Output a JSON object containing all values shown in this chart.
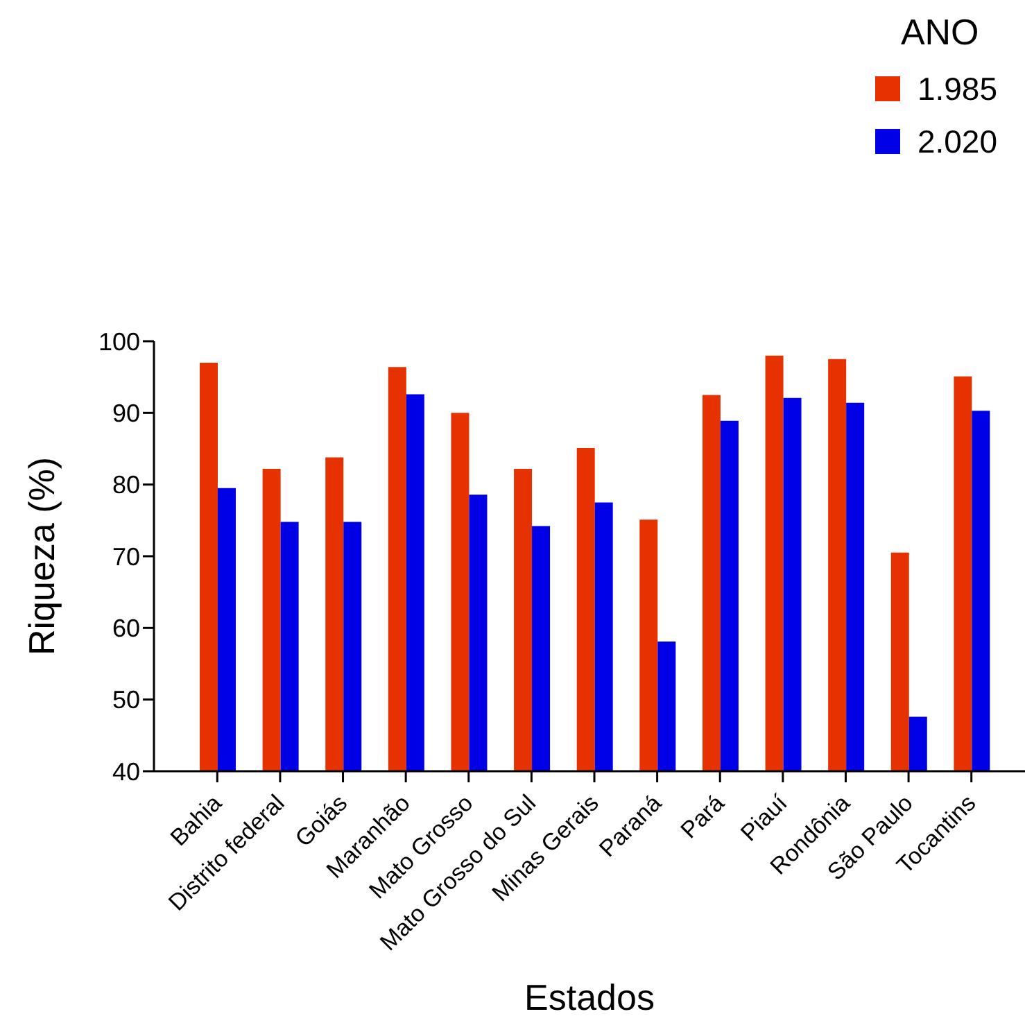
{
  "chart_data": {
    "type": "bar",
    "xlabel": "Estados",
    "ylabel": "Riqueza (%)",
    "legend_title": "ANO",
    "categories": [
      "Bahia",
      "Distrito federal",
      "Goiás",
      "Maranhão",
      "Mato Grosso",
      "Mato Grosso do Sul",
      "Minas Gerais",
      "Paraná",
      "Pará",
      "Piauí",
      "Rondônia",
      "São Paulo",
      "Tocantins"
    ],
    "series": [
      {
        "name": "1.985",
        "color": "#e63200",
        "values": [
          97.0,
          82.2,
          83.8,
          96.4,
          90.0,
          82.2,
          85.1,
          75.1,
          92.5,
          98.0,
          97.5,
          70.5,
          95.1
        ]
      },
      {
        "name": "2.020",
        "color": "#0000e6",
        "values": [
          79.5,
          74.8,
          74.8,
          92.6,
          78.6,
          74.2,
          77.5,
          58.1,
          88.9,
          92.1,
          91.4,
          47.6,
          90.3
        ]
      }
    ],
    "ylim": [
      40,
      100
    ],
    "yticks": [
      40,
      50,
      60,
      70,
      80,
      90,
      100
    ],
    "grid": false,
    "legend": "top right"
  }
}
